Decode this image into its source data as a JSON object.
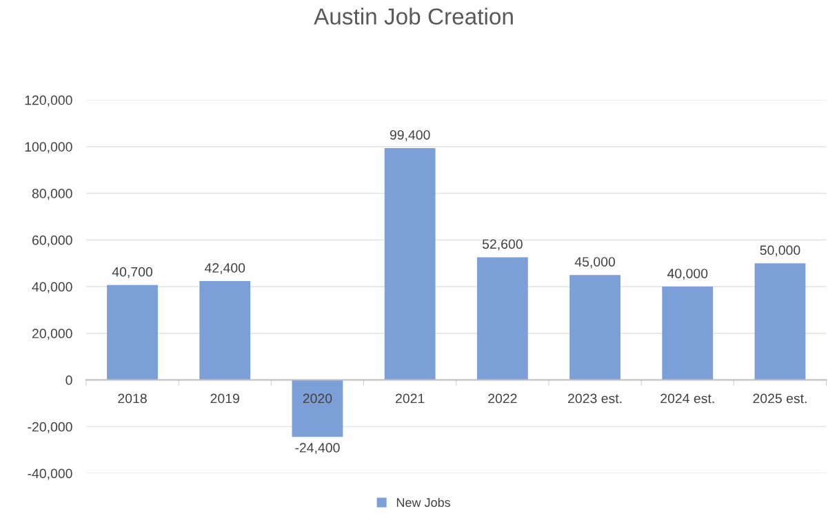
{
  "chart_data": {
    "type": "bar",
    "title": "Austin Job Creation",
    "categories": [
      "2018",
      "2019",
      "2020",
      "2021",
      "2022",
      "2023 est.",
      "2024 est.",
      "2025 est."
    ],
    "series": [
      {
        "name": "New Jobs",
        "color": "#7b9fd6",
        "values": [
          40700,
          42400,
          -24400,
          99400,
          52600,
          45000,
          40000,
          50000
        ],
        "value_labels": [
          "40,700",
          "42,400",
          "-24,400",
          "99,400",
          "52,600",
          "45,000",
          "40,000",
          "50,000"
        ]
      }
    ],
    "ylim": [
      -40000,
      120000
    ],
    "yticks": [
      {
        "value": -40000,
        "label": "-40,000"
      },
      {
        "value": -20000,
        "label": "-20,000"
      },
      {
        "value": 0,
        "label": "0"
      },
      {
        "value": 20000,
        "label": "20,000"
      },
      {
        "value": 40000,
        "label": "40,000"
      },
      {
        "value": 60000,
        "label": "60,000"
      },
      {
        "value": 80000,
        "label": "80,000"
      },
      {
        "value": 100000,
        "label": "100,000"
      },
      {
        "value": 120000,
        "label": "120,000"
      }
    ],
    "grid": "y",
    "legend": "bottom"
  }
}
